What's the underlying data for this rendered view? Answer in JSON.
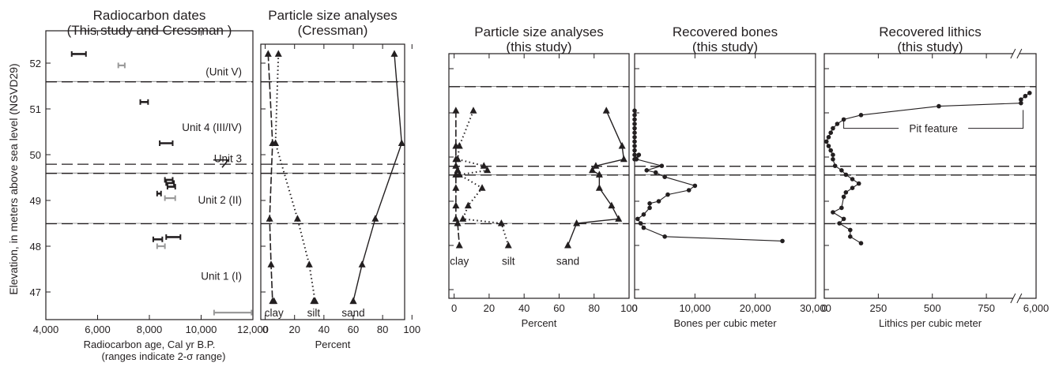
{
  "figure": {
    "y_axis_label": "Elevation, in meters above sea level (NGVD29)",
    "y_ticks": [
      47,
      48,
      49,
      50,
      51,
      52
    ],
    "y_range": [
      46.5,
      52.5
    ],
    "horizontal_lines": {
      "solid": [
        51.6,
        49.6,
        48.5
      ],
      "dashed": [
        51.6,
        49.8,
        49.6,
        48.5
      ]
    }
  },
  "chart_data": [
    {
      "type": "range",
      "title_lines": [
        "Radiocarbon dates",
        "(This study and Cressman )"
      ],
      "xlabel_lines": [
        "Radiocarbon age, Cal yr B.P.",
        "(ranges indicate 2-σ range)"
      ],
      "xlim": [
        4000,
        12000
      ],
      "x_ticks": [
        4000,
        6000,
        8000,
        10000,
        12000
      ],
      "x_tick_labels": [
        "4,000",
        "6,000",
        "8,000",
        "10,000",
        "12,000"
      ],
      "colors": {
        "this_study": "#231f20",
        "cressman": "#9a9a9a"
      },
      "ranges": [
        {
          "y": 52.2,
          "x": [
            5000,
            5550
          ],
          "source": "this_study"
        },
        {
          "y": 51.95,
          "x": [
            6800,
            7050
          ],
          "source": "cressman"
        },
        {
          "y": 51.15,
          "x": [
            7650,
            7950
          ],
          "source": "this_study"
        },
        {
          "y": 50.25,
          "x": [
            8400,
            8900
          ],
          "source": "this_study"
        },
        {
          "y": 49.45,
          "x": [
            8600,
            8900
          ],
          "source": "this_study"
        },
        {
          "y": 49.38,
          "x": [
            8650,
            8950
          ],
          "source": "this_study"
        },
        {
          "y": 49.3,
          "x": [
            8700,
            9000
          ],
          "source": "this_study"
        },
        {
          "y": 49.15,
          "x": [
            8300,
            8450
          ],
          "source": "this_study"
        },
        {
          "y": 49.05,
          "x": [
            8600,
            9000
          ],
          "source": "cressman"
        },
        {
          "y": 48.2,
          "x": [
            8650,
            9200
          ],
          "source": "this_study"
        },
        {
          "y": 48.15,
          "x": [
            8150,
            8500
          ],
          "source": "this_study"
        },
        {
          "y": 48.0,
          "x": [
            8300,
            8600
          ],
          "source": "cressman"
        },
        {
          "y": 46.55,
          "x": [
            10500,
            11950
          ],
          "source": "cressman"
        }
      ],
      "annotations": [
        {
          "text": "(Unit V)",
          "y": 51.82
        },
        {
          "text": "Unit 4 (III/IV)",
          "y": 50.6
        },
        {
          "text": "Unit 3",
          "y": 49.92
        },
        {
          "text": "Unit 2 (II)",
          "y": 49.02
        },
        {
          "text": "Unit 1 (I)",
          "y": 47.35
        }
      ]
    },
    {
      "type": "line",
      "title_lines": [
        "Particle size analyses",
        "(Cressman)"
      ],
      "xlabel_lines": [
        "Percent"
      ],
      "xlim": [
        -3,
        95
      ],
      "x_ticks": [
        0,
        20,
        40,
        60,
        80,
        100
      ],
      "x_tick_labels": [
        "0",
        "20",
        "40",
        "60",
        "80",
        "100"
      ],
      "series": [
        {
          "name": "clay",
          "style": "dashdash",
          "x": [
            2,
            5,
            3,
            4,
            5,
            6
          ],
          "y": [
            52.2,
            50.25,
            48.6,
            47.6,
            46.8,
            46.8
          ]
        },
        {
          "name": "silt",
          "style": "dotted",
          "x": [
            9,
            7,
            22,
            30,
            34,
            33
          ],
          "y": [
            52.2,
            50.25,
            48.6,
            47.6,
            46.8,
            46.8
          ]
        },
        {
          "name": "sand",
          "style": "solid",
          "x": [
            88,
            93,
            75,
            66,
            60,
            60
          ],
          "y": [
            52.2,
            50.25,
            48.6,
            47.6,
            46.8,
            46.8
          ]
        }
      ],
      "label_y": 46.55
    },
    {
      "type": "line",
      "title_lines": [
        "Particle size analyses",
        "(this study)"
      ],
      "xlabel_lines": [
        "Percent"
      ],
      "xlim": [
        -3,
        100
      ],
      "x_ticks": [
        0,
        20,
        40,
        60,
        80,
        100
      ],
      "x_tick_labels": [
        "0",
        "20",
        "40",
        "60",
        "80",
        "100"
      ],
      "series": [
        {
          "name": "clay",
          "style": "dashdash",
          "x": [
            1,
            1,
            1,
            1,
            2,
            1,
            1,
            1,
            1,
            2,
            3
          ],
          "y": [
            51.05,
            50.25,
            49.95,
            49.8,
            49.7,
            49.6,
            49.3,
            48.9,
            48.6,
            48.5,
            48.0
          ]
        },
        {
          "name": "silt",
          "style": "dotted",
          "x": [
            11,
            3,
            2,
            17,
            19,
            3,
            16,
            8,
            5,
            27,
            31
          ],
          "y": [
            51.05,
            50.25,
            49.95,
            49.8,
            49.7,
            49.6,
            49.3,
            48.9,
            48.6,
            48.5,
            48.0
          ]
        },
        {
          "name": "sand",
          "style": "solid",
          "x": [
            87,
            96,
            97,
            81,
            79,
            83,
            83,
            90,
            94,
            70,
            65
          ],
          "y": [
            51.05,
            50.25,
            49.95,
            49.8,
            49.7,
            49.6,
            49.3,
            48.9,
            48.6,
            48.5,
            48.0
          ]
        }
      ],
      "label_y": 47.65
    },
    {
      "type": "line",
      "title_lines": [
        "Recovered bones",
        "(this study)"
      ],
      "xlabel_lines": [
        "Bones per cubic meter"
      ],
      "xlim": [
        0,
        30000
      ],
      "x_ticks": [
        0,
        10000,
        20000,
        30000
      ],
      "x_tick_labels": [
        "0",
        "10,000",
        "20,000",
        "30,000"
      ],
      "series": [
        {
          "name": "bones",
          "x": [
            0,
            0,
            0,
            0,
            0,
            0,
            0,
            0,
            0,
            0,
            0,
            0,
            700,
            300,
            4500,
            2000,
            3500,
            5000,
            10000,
            9000,
            5500,
            4000,
            2500,
            2500,
            1500,
            500,
            1000,
            1500,
            5000,
            24500
          ],
          "y": [
            51.05,
            50.95,
            50.85,
            50.75,
            50.65,
            50.55,
            50.45,
            50.35,
            50.25,
            50.15,
            50.05,
            49.95,
            50.05,
            49.95,
            49.8,
            49.7,
            49.65,
            49.55,
            49.35,
            49.25,
            49.15,
            49.0,
            48.95,
            48.85,
            48.7,
            48.6,
            48.5,
            48.4,
            48.2,
            48.1
          ]
        }
      ]
    },
    {
      "type": "line",
      "title_lines": [
        "Recovered lithics",
        "(this study)"
      ],
      "xlabel_lines": [
        "Lithics per cubic meter"
      ],
      "xlim": [
        0,
        980
      ],
      "x_ticks": [
        0,
        250,
        500,
        750,
        6000
      ],
      "x_tick_labels": [
        "0",
        "250",
        "500",
        "750",
        "6,000"
      ],
      "axis_break": true,
      "series": [
        {
          "name": "lithics",
          "x": [
            950,
            930,
            910,
            910,
            530,
            170,
            90,
            60,
            40,
            30,
            20,
            10,
            20,
            30,
            40,
            40,
            50,
            80,
            100,
            130,
            160,
            130,
            100,
            90,
            80,
            40,
            90,
            70,
            120,
            120,
            170
          ],
          "y": [
            51.45,
            51.38,
            51.3,
            51.22,
            51.15,
            50.95,
            50.85,
            50.75,
            50.65,
            50.55,
            50.45,
            50.35,
            50.25,
            50.15,
            50.05,
            49.95,
            49.8,
            49.7,
            49.6,
            49.5,
            49.4,
            49.3,
            49.2,
            49.1,
            48.85,
            48.75,
            48.6,
            48.5,
            48.35,
            48.2,
            48.05
          ]
        }
      ],
      "annotation": {
        "text": "Pit feature",
        "bracket_x": [
          90,
          920
        ],
        "bracket_y": [
          50.85,
          50.65,
          50.65,
          50.85
        ]
      }
    }
  ]
}
